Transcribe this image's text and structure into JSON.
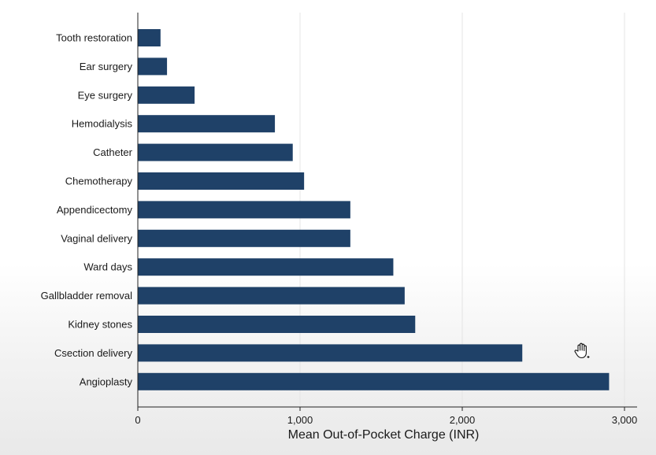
{
  "chart_data": {
    "type": "bar",
    "orientation": "horizontal",
    "categories": [
      "Tooth restoration",
      "Ear surgery",
      "Eye surgery",
      "Hemodialysis",
      "Catheter",
      "Chemotherapy",
      "Appendicectomy",
      "Vaginal delivery",
      "Ward days",
      "Gallbladder removal",
      "Kidney stones",
      "Csection delivery",
      "Angioplasty"
    ],
    "values": [
      140,
      180,
      350,
      845,
      955,
      1025,
      1310,
      1310,
      1575,
      1645,
      1710,
      2370,
      2905
    ],
    "xlabel": "Mean Out-of-Pocket Charge (INR)",
    "ylabel": "",
    "xlim": [
      0,
      3000
    ],
    "xticks": [
      0,
      1000,
      2000,
      3000
    ],
    "xtick_labels": [
      "0",
      "1,000",
      "2,000",
      "3,000"
    ],
    "grid": "vertical",
    "bar_color": "#1f4168",
    "grid_color": "#e4e4e4"
  },
  "overlay": {
    "cursor_icon": "hand-grab-icon"
  }
}
